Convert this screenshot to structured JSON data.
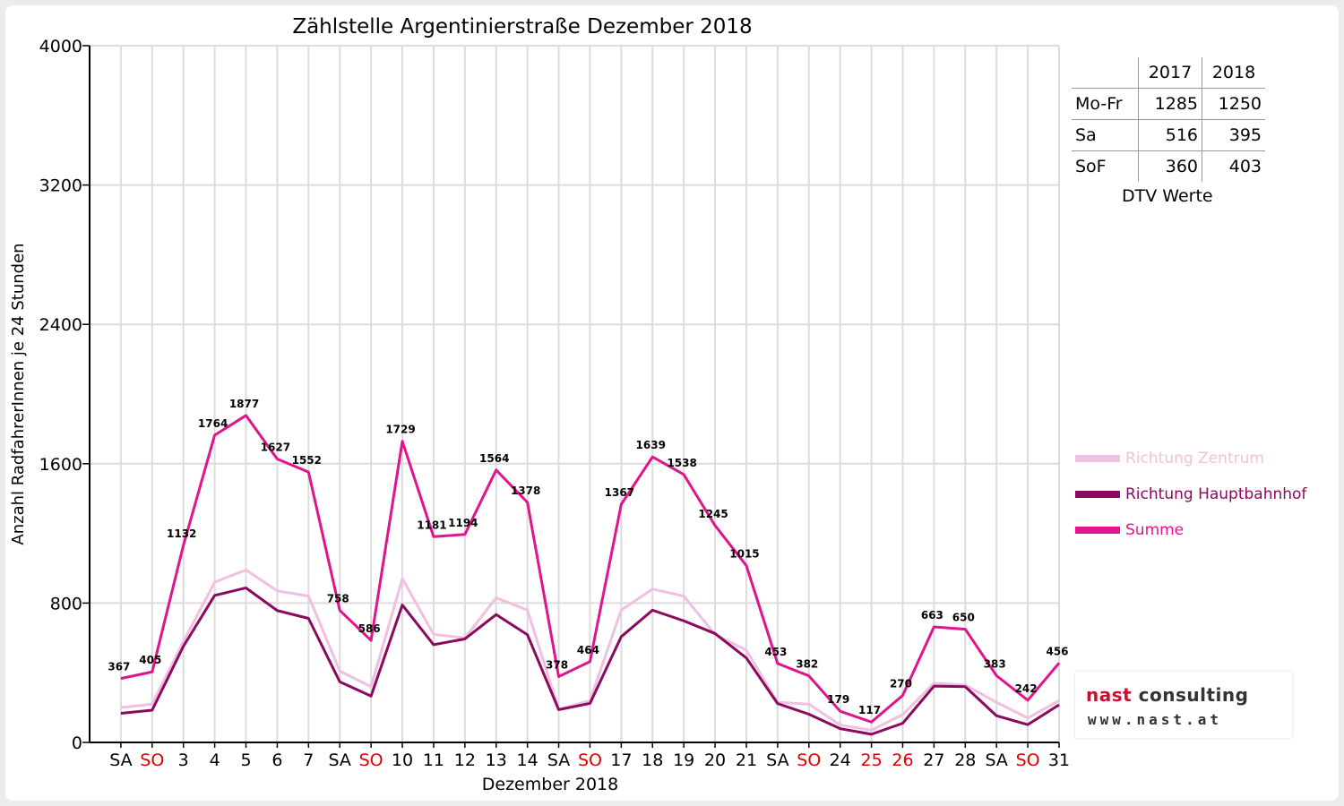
{
  "chart_data": {
    "type": "line",
    "title": "Zählstelle Argentinierstraße Dezember 2018",
    "xlabel": "Dezember 2018",
    "ylabel": "Anzahl RadfahrerInnen je 24 Stunden",
    "ylim": [
      0,
      4000
    ],
    "yticks": [
      "0",
      "800",
      "1600",
      "2400",
      "3200",
      "4000"
    ],
    "categories": [
      "SA",
      "SO",
      "3",
      "4",
      "5",
      "6",
      "7",
      "SA",
      "SO",
      "10",
      "11",
      "12",
      "13",
      "14",
      "SA",
      "SO",
      "17",
      "18",
      "19",
      "20",
      "21",
      "SA",
      "SO",
      "24",
      "25",
      "26",
      "27",
      "28",
      "SA",
      "SO",
      "31"
    ],
    "red_categories": [
      1,
      8,
      15,
      22,
      24,
      25,
      29
    ],
    "grid": true,
    "legend_position": "right",
    "series": [
      {
        "name": "Richtung Zentrum",
        "color": "#f0c0e0",
        "values": [
          200,
          220,
          580,
          920,
          990,
          870,
          840,
          410,
          320,
          940,
          620,
          600,
          830,
          760,
          190,
          240,
          760,
          880,
          840,
          620,
          530,
          230,
          220,
          100,
          70,
          160,
          340,
          330,
          230,
          140,
          240
        ]
      },
      {
        "name": "Richtung Hauptbahnhof",
        "color": "#8b0a5f",
        "values": [
          167,
          185,
          552,
          844,
          887,
          757,
          712,
          348,
          266,
          789,
          561,
          594,
          734,
          618,
          188,
          224,
          607,
          759,
          698,
          625,
          485,
          223,
          162,
          79,
          47,
          110,
          323,
          320,
          153,
          102,
          216
        ]
      },
      {
        "name": "Summe",
        "color": "#e0148c",
        "values": [
          367,
          405,
          1132,
          1764,
          1877,
          1627,
          1552,
          758,
          586,
          1729,
          1181,
          1194,
          1564,
          1378,
          378,
          464,
          1367,
          1639,
          1538,
          1245,
          1015,
          453,
          382,
          179,
          117,
          270,
          663,
          650,
          383,
          242,
          456
        ]
      }
    ],
    "data_labels": [
      "367",
      "405",
      "1132",
      "1764",
      "1877",
      "1627",
      "1552",
      "758",
      "586",
      "1729",
      "1181",
      "1194",
      "1564",
      "1378",
      "378",
      "464",
      "1367",
      "1639",
      "1538",
      "1245",
      "1015",
      "453",
      "382",
      "179",
      "117",
      "270",
      "663",
      "650",
      "383",
      "242",
      "456"
    ]
  },
  "dtv_table": {
    "headers": [
      "",
      "2017",
      "2018"
    ],
    "rows": [
      {
        "label": "Mo-Fr",
        "v2017": "1285",
        "v2018": "1250"
      },
      {
        "label": "Sa",
        "v2017": "516",
        "v2018": "395"
      },
      {
        "label": "SoF",
        "v2017": "360",
        "v2018": "403"
      }
    ],
    "caption": "DTV Werte"
  },
  "legend": [
    {
      "label": "Richtung Zentrum",
      "color": "#f0c0e0"
    },
    {
      "label": "Richtung Hauptbahnhof",
      "color": "#8b0a5f"
    },
    {
      "label": "Summe",
      "color": "#e0148c"
    }
  ],
  "logo": {
    "line1_a": "nast",
    "line1_b": " consulting",
    "line2": "www.nast.at"
  }
}
